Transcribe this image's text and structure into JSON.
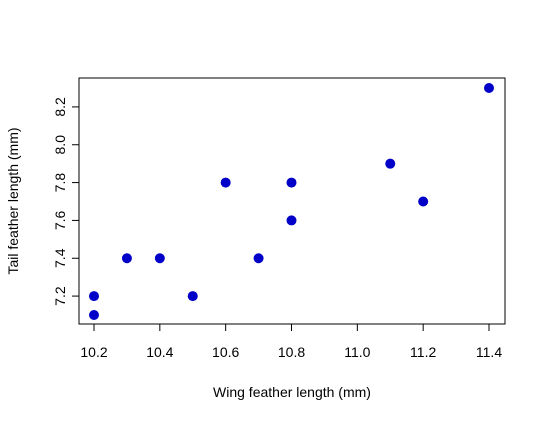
{
  "chart_data": {
    "type": "scatter",
    "title": "",
    "xlabel": "Wing feather length (mm)",
    "ylabel": "Tail feather length (mm)",
    "xlim": [
      10.2,
      11.4
    ],
    "ylim": [
      7.1,
      8.3
    ],
    "x_ticks": [
      "10.2",
      "10.4",
      "10.6",
      "10.8",
      "11.0",
      "11.2",
      "11.4"
    ],
    "y_ticks": [
      "7.2",
      "7.4",
      "7.6",
      "7.8",
      "8.0",
      "8.2"
    ],
    "grid": false,
    "legend": "none",
    "point_color": "#0000C8",
    "points": [
      {
        "x": 10.2,
        "y": 7.1
      },
      {
        "x": 10.2,
        "y": 7.2
      },
      {
        "x": 10.3,
        "y": 7.4
      },
      {
        "x": 10.4,
        "y": 7.4
      },
      {
        "x": 10.5,
        "y": 7.2
      },
      {
        "x": 10.6,
        "y": 7.8
      },
      {
        "x": 10.7,
        "y": 7.4
      },
      {
        "x": 10.8,
        "y": 7.6
      },
      {
        "x": 10.8,
        "y": 7.8
      },
      {
        "x": 11.1,
        "y": 7.9
      },
      {
        "x": 11.2,
        "y": 7.7
      },
      {
        "x": 11.4,
        "y": 8.3
      }
    ]
  }
}
